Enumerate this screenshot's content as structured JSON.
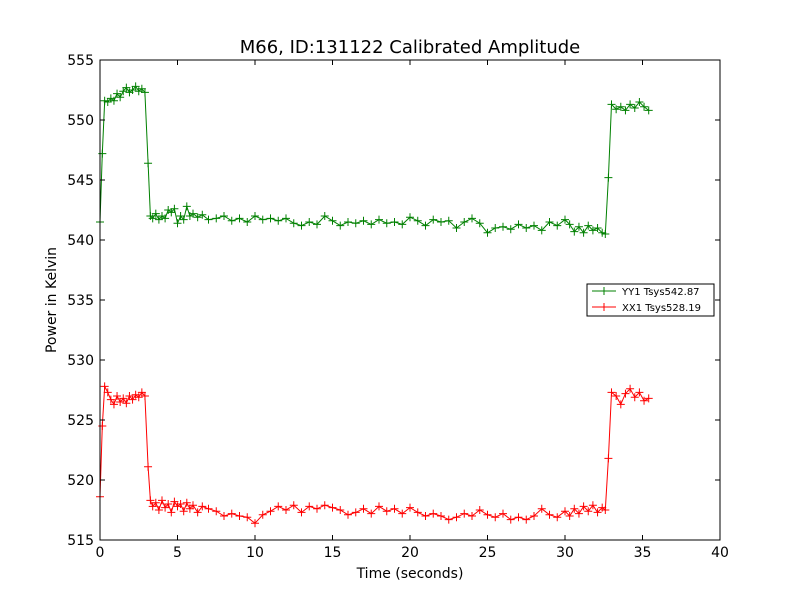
{
  "chart_data": {
    "type": "line",
    "title": "M66, ID:131122 Calibrated Amplitude",
    "xlabel": "Time (seconds)",
    "ylabel": "Power in Kelvin",
    "xlim": [
      0,
      40
    ],
    "ylim": [
      515,
      555
    ],
    "xticks": [
      0,
      5,
      10,
      15,
      20,
      25,
      30,
      35,
      40
    ],
    "yticks": [
      515,
      520,
      525,
      530,
      535,
      540,
      545,
      550,
      555
    ],
    "grid": false,
    "legend_position": "right",
    "marker": "+",
    "series": [
      {
        "name": "YY1 Tsys542.87",
        "color": "#008000",
        "x": [
          0.0,
          0.15,
          0.3,
          0.5,
          0.7,
          0.9,
          1.1,
          1.3,
          1.5,
          1.7,
          1.9,
          2.1,
          2.3,
          2.5,
          2.7,
          2.9,
          3.1,
          3.25,
          3.4,
          3.6,
          3.8,
          4.0,
          4.2,
          4.4,
          4.6,
          4.8,
          5.0,
          5.2,
          5.4,
          5.6,
          5.8,
          6.0,
          6.3,
          6.6,
          7.0,
          7.5,
          8.0,
          8.5,
          9.0,
          9.5,
          10.0,
          10.5,
          11.0,
          11.5,
          12.0,
          12.5,
          13.0,
          13.5,
          14.0,
          14.5,
          15.0,
          15.5,
          16.0,
          16.5,
          17.0,
          17.5,
          18.0,
          18.5,
          19.0,
          19.5,
          20.0,
          20.5,
          21.0,
          21.5,
          22.0,
          22.5,
          23.0,
          23.5,
          24.0,
          24.5,
          25.0,
          25.5,
          26.0,
          26.5,
          27.0,
          27.5,
          28.0,
          28.5,
          29.0,
          29.5,
          30.0,
          30.3,
          30.6,
          30.9,
          31.2,
          31.5,
          31.8,
          32.1,
          32.4,
          32.6,
          32.8,
          33.0,
          33.3,
          33.6,
          33.9,
          34.2,
          34.5,
          34.8,
          35.1,
          35.4
        ],
        "values": [
          541.5,
          547.2,
          551.6,
          551.5,
          551.8,
          551.6,
          552.2,
          551.9,
          552.4,
          552.7,
          552.3,
          552.5,
          552.8,
          552.4,
          552.6,
          552.3,
          546.4,
          542.0,
          541.8,
          542.2,
          541.7,
          542.0,
          541.8,
          542.5,
          542.3,
          542.6,
          541.4,
          542.0,
          541.7,
          542.8,
          542.0,
          542.2,
          541.9,
          542.1,
          541.7,
          541.8,
          542.0,
          541.6,
          541.8,
          541.5,
          542.0,
          541.7,
          541.8,
          541.6,
          541.8,
          541.4,
          541.2,
          541.5,
          541.3,
          542.0,
          541.6,
          541.2,
          541.5,
          541.4,
          541.6,
          541.3,
          541.7,
          541.4,
          541.5,
          541.3,
          541.9,
          541.6,
          541.2,
          541.7,
          541.5,
          541.6,
          541.0,
          541.5,
          541.8,
          541.4,
          540.6,
          541.0,
          541.1,
          540.9,
          541.3,
          541.0,
          541.2,
          540.8,
          541.5,
          541.2,
          541.7,
          541.3,
          540.7,
          541.1,
          540.6,
          541.2,
          540.8,
          541.0,
          540.6,
          540.5,
          545.2,
          551.3,
          550.9,
          551.1,
          550.8,
          551.3,
          551.0,
          551.5,
          551.1,
          550.8
        ]
      },
      {
        "name": "XX1 Tsys528.19",
        "color": "#ff0000",
        "x": [
          0.0,
          0.15,
          0.3,
          0.5,
          0.7,
          0.9,
          1.1,
          1.3,
          1.5,
          1.7,
          1.9,
          2.1,
          2.3,
          2.5,
          2.7,
          2.9,
          3.1,
          3.25,
          3.4,
          3.6,
          3.8,
          4.0,
          4.2,
          4.4,
          4.6,
          4.8,
          5.0,
          5.2,
          5.4,
          5.6,
          5.8,
          6.0,
          6.3,
          6.6,
          7.0,
          7.5,
          8.0,
          8.5,
          9.0,
          9.5,
          10.0,
          10.5,
          11.0,
          11.5,
          12.0,
          12.5,
          13.0,
          13.5,
          14.0,
          14.5,
          15.0,
          15.5,
          16.0,
          16.5,
          17.0,
          17.5,
          18.0,
          18.5,
          19.0,
          19.5,
          20.0,
          20.5,
          21.0,
          21.5,
          22.0,
          22.5,
          23.0,
          23.5,
          24.0,
          24.5,
          25.0,
          25.5,
          26.0,
          26.5,
          27.0,
          27.5,
          28.0,
          28.5,
          29.0,
          29.5,
          30.0,
          30.3,
          30.6,
          30.9,
          31.2,
          31.5,
          31.8,
          32.1,
          32.4,
          32.6,
          32.8,
          33.0,
          33.3,
          33.6,
          33.9,
          34.2,
          34.5,
          34.8,
          35.1,
          35.4
        ],
        "values": [
          518.6,
          524.5,
          527.8,
          527.3,
          526.7,
          526.3,
          527.0,
          526.5,
          526.8,
          526.4,
          527.0,
          526.7,
          527.1,
          526.9,
          527.3,
          527.0,
          521.1,
          518.3,
          517.8,
          518.1,
          517.5,
          518.3,
          517.7,
          518.0,
          517.3,
          518.2,
          517.8,
          518.0,
          517.4,
          518.1,
          517.6,
          517.9,
          517.3,
          517.8,
          517.6,
          517.4,
          517.0,
          517.2,
          517.0,
          516.9,
          516.4,
          517.1,
          517.4,
          517.8,
          517.5,
          517.9,
          517.3,
          517.8,
          517.6,
          517.9,
          517.7,
          517.5,
          517.1,
          517.3,
          517.6,
          517.2,
          517.8,
          517.4,
          517.6,
          517.2,
          517.7,
          517.3,
          517.0,
          517.2,
          517.0,
          516.7,
          516.9,
          517.2,
          517.0,
          517.5,
          517.1,
          516.9,
          517.2,
          516.7,
          516.9,
          516.7,
          517.0,
          517.6,
          517.1,
          516.9,
          517.4,
          517.0,
          517.6,
          517.2,
          517.8,
          517.4,
          517.9,
          517.3,
          517.7,
          517.5,
          521.8,
          527.3,
          527.0,
          526.3,
          527.2,
          527.6,
          526.9,
          527.3,
          526.6,
          526.8
        ]
      }
    ]
  }
}
